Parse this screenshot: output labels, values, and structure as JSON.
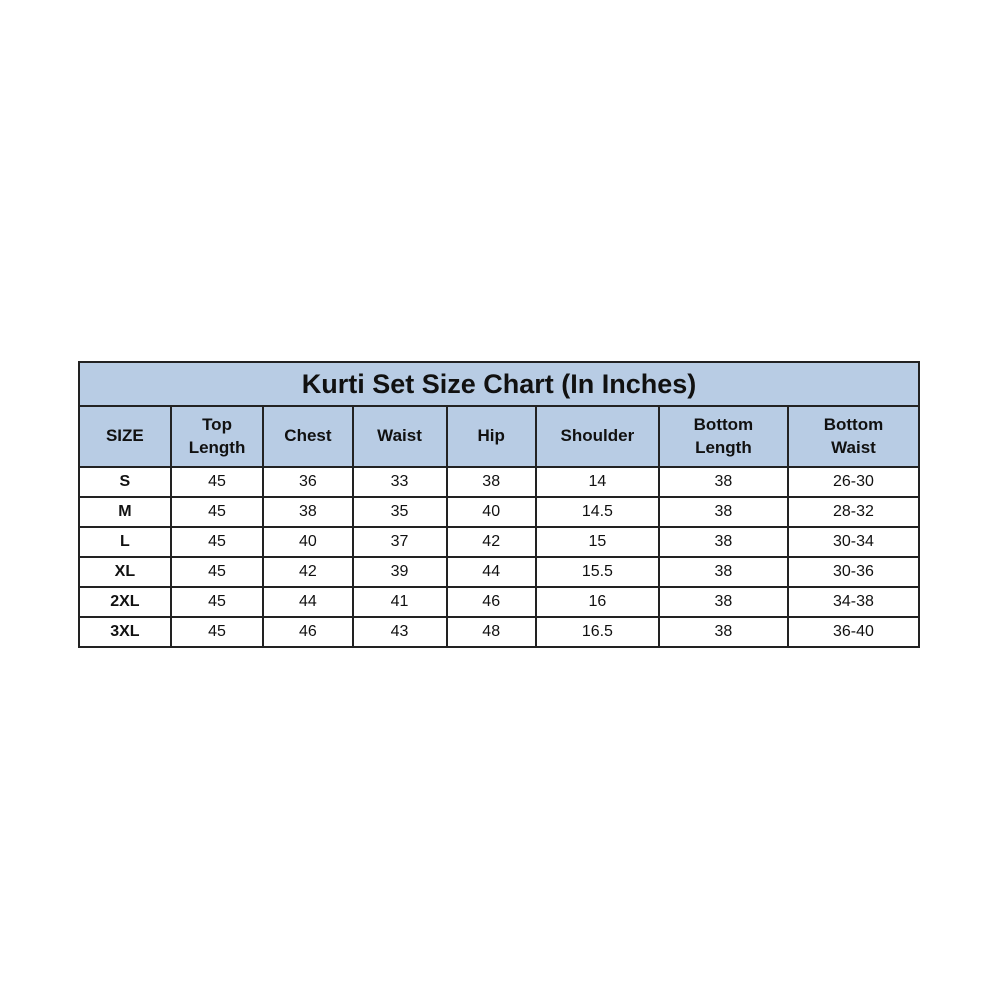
{
  "title": "Kurti Set Size Chart (In Inches)",
  "header_color": "#b8cce4",
  "columns": [
    [
      "SIZE"
    ],
    [
      "Top",
      "Length"
    ],
    [
      "Chest"
    ],
    [
      "Waist"
    ],
    [
      "Hip"
    ],
    [
      "Shoulder"
    ],
    [
      "Bottom",
      "Length"
    ],
    [
      "Bottom",
      "Waist"
    ]
  ],
  "rows": [
    [
      "S",
      "45",
      "36",
      "33",
      "38",
      "14",
      "38",
      "26-30"
    ],
    [
      "M",
      "45",
      "38",
      "35",
      "40",
      "14.5",
      "38",
      "28-32"
    ],
    [
      "L",
      "45",
      "40",
      "37",
      "42",
      "15",
      "38",
      "30-34"
    ],
    [
      "XL",
      "45",
      "42",
      "39",
      "44",
      "15.5",
      "38",
      "30-36"
    ],
    [
      "2XL",
      "45",
      "44",
      "41",
      "46",
      "16",
      "38",
      "34-38"
    ],
    [
      "3XL",
      "45",
      "46",
      "43",
      "48",
      "16.5",
      "38",
      "36-40"
    ]
  ]
}
